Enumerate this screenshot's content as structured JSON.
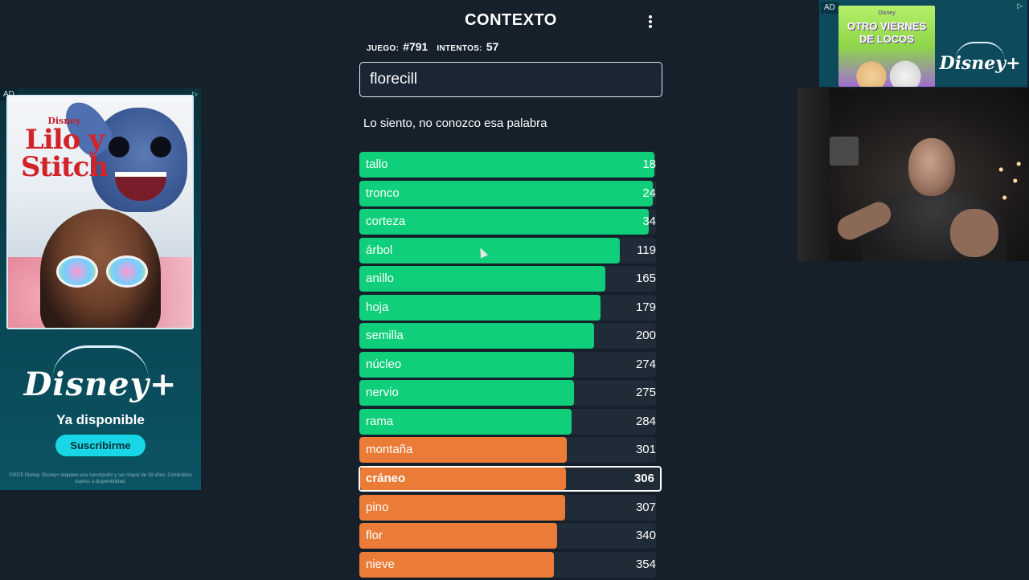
{
  "game": {
    "title": "CONTEXTO",
    "menu_icon": "kebab-menu-icon",
    "game_label": "JUEGO:",
    "game_number": "#791",
    "attempts_label": "INTENTOS:",
    "attempts": "57",
    "input_value": "florecill",
    "message": "Lo siento, no conozco esa palabra",
    "colors": {
      "green": "#10cf7a",
      "orange": "#ea7c38",
      "track": "#1f2b36",
      "background": "#15202b"
    },
    "guesses": [
      {
        "word": "tallo",
        "rank": "18",
        "fill": 0.995,
        "color": "green"
      },
      {
        "word": "tronco",
        "rank": "24",
        "fill": 0.99,
        "color": "green"
      },
      {
        "word": "corteza",
        "rank": "34",
        "fill": 0.975,
        "color": "green"
      },
      {
        "word": "árbol",
        "rank": "119",
        "fill": 0.878,
        "color": "green"
      },
      {
        "word": "anillo",
        "rank": "165",
        "fill": 0.829,
        "color": "green"
      },
      {
        "word": "hoja",
        "rank": "179",
        "fill": 0.813,
        "color": "green"
      },
      {
        "word": "semilla",
        "rank": "200",
        "fill": 0.791,
        "color": "green"
      },
      {
        "word": "núcleo",
        "rank": "274",
        "fill": 0.724,
        "color": "green"
      },
      {
        "word": "nervio",
        "rank": "275",
        "fill": 0.723,
        "color": "green"
      },
      {
        "word": "rama",
        "rank": "284",
        "fill": 0.715,
        "color": "green"
      },
      {
        "word": "montaña",
        "rank": "301",
        "fill": 0.7,
        "color": "orange"
      },
      {
        "word": "cráneo",
        "rank": "306",
        "fill": 0.687,
        "color": "orange",
        "current": true
      },
      {
        "word": "pino",
        "rank": "307",
        "fill": 0.694,
        "color": "orange"
      },
      {
        "word": "flor",
        "rank": "340",
        "fill": 0.666,
        "color": "orange"
      },
      {
        "word": "nieve",
        "rank": "354",
        "fill": 0.656,
        "color": "orange"
      }
    ]
  },
  "ad_left": {
    "badge": "AD",
    "close_icon": "adchoices-icon",
    "brand_small": "Disney",
    "movie_title_line1": "Lilo y",
    "movie_title_line2": "Stitch",
    "logo_text": "Disney+",
    "available": "Ya disponible",
    "cta": "Suscribirme",
    "fine_print": "©2025 Disney. Disney+ requiere una suscripción y ser mayor de 18 años. Contenidos sujetos a disponibilidad."
  },
  "ad_right": {
    "badge": "AD",
    "close_icon": "adchoices-icon",
    "brand_small": "Disney",
    "title": "OTRO VIERNES DE LOCOS",
    "logo_text": "Disney+"
  }
}
